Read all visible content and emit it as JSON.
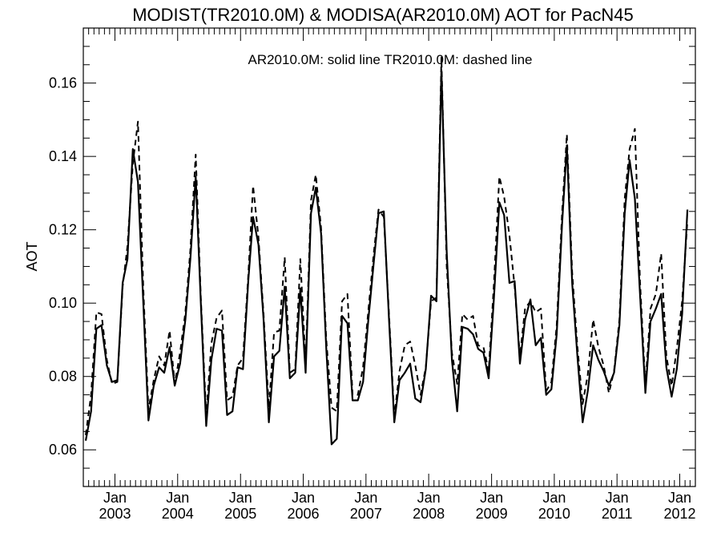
{
  "chart_data": {
    "type": "line",
    "title": "MODIST(TR2010.0M) & MODISA(AR2010.0M)  AOT for PacN45",
    "annotation": "AR2010.0M: solid line   TR2010.0M: dashed line",
    "ylabel": "AOT",
    "xlabel": "",
    "xlim": [
      "2002-07-01",
      "2012-04-01"
    ],
    "ylim": [
      0.05,
      0.175
    ],
    "yticks": [
      {
        "value": 0.06,
        "label": "0.06"
      },
      {
        "value": 0.08,
        "label": "0.08"
      },
      {
        "value": 0.1,
        "label": "0.10"
      },
      {
        "value": 0.12,
        "label": "0.12"
      },
      {
        "value": 0.14,
        "label": "0.14"
      },
      {
        "value": 0.16,
        "label": "0.16"
      }
    ],
    "xticks": [
      {
        "date": "2003-01-01",
        "month": "Jan",
        "year": "2003"
      },
      {
        "date": "2004-01-01",
        "month": "Jan",
        "year": "2004"
      },
      {
        "date": "2005-01-01",
        "month": "Jan",
        "year": "2005"
      },
      {
        "date": "2006-01-01",
        "month": "Jan",
        "year": "2006"
      },
      {
        "date": "2007-01-01",
        "month": "Jan",
        "year": "2007"
      },
      {
        "date": "2008-01-01",
        "month": "Jan",
        "year": "2008"
      },
      {
        "date": "2009-01-01",
        "month": "Jan",
        "year": "2009"
      },
      {
        "date": "2010-01-01",
        "month": "Jan",
        "year": "2010"
      },
      {
        "date": "2011-01-01",
        "month": "Jan",
        "year": "2011"
      },
      {
        "date": "2012-01-01",
        "month": "Jan",
        "year": "2012"
      }
    ],
    "grid": false,
    "series": [
      {
        "name": "AR2010.0M",
        "style": "solid",
        "color": "#000000",
        "points": [
          [
            "2002-07-15",
            0.0625
          ],
          [
            "2002-08-15",
            0.0705
          ],
          [
            "2002-09-15",
            0.093
          ],
          [
            "2002-10-15",
            0.094
          ],
          [
            "2002-11-15",
            0.083
          ],
          [
            "2002-12-15",
            0.0785
          ],
          [
            "2003-01-15",
            0.079
          ],
          [
            "2003-02-15",
            0.1055
          ],
          [
            "2003-03-15",
            0.112
          ],
          [
            "2003-04-15",
            0.142
          ],
          [
            "2003-05-15",
            0.133
          ],
          [
            "2003-06-15",
            0.1
          ],
          [
            "2003-07-15",
            0.068
          ],
          [
            "2003-08-15",
            0.0775
          ],
          [
            "2003-09-15",
            0.0825
          ],
          [
            "2003-10-15",
            0.081
          ],
          [
            "2003-11-15",
            0.088
          ],
          [
            "2003-12-15",
            0.0775
          ],
          [
            "2004-01-15",
            0.0835
          ],
          [
            "2004-02-15",
            0.0955
          ],
          [
            "2004-03-15",
            0.112
          ],
          [
            "2004-04-15",
            0.1345
          ],
          [
            "2004-05-15",
            0.1
          ],
          [
            "2004-06-15",
            0.0665
          ],
          [
            "2004-07-15",
            0.0845
          ],
          [
            "2004-08-15",
            0.093
          ],
          [
            "2004-09-15",
            0.0925
          ],
          [
            "2004-10-15",
            0.0695
          ],
          [
            "2004-11-15",
            0.0705
          ],
          [
            "2004-12-15",
            0.0825
          ],
          [
            "2005-01-15",
            0.082
          ],
          [
            "2005-02-15",
            0.106
          ],
          [
            "2005-03-15",
            0.1235
          ],
          [
            "2005-04-15",
            0.116
          ],
          [
            "2005-05-15",
            0.0955
          ],
          [
            "2005-06-15",
            0.0675
          ],
          [
            "2005-07-15",
            0.0855
          ],
          [
            "2005-08-15",
            0.087
          ],
          [
            "2005-09-15",
            0.1045
          ],
          [
            "2005-10-15",
            0.0795
          ],
          [
            "2005-11-15",
            0.081
          ],
          [
            "2005-12-15",
            0.104
          ],
          [
            "2006-01-15",
            0.081
          ],
          [
            "2006-02-15",
            0.1245
          ],
          [
            "2006-03-15",
            0.1315
          ],
          [
            "2006-04-15",
            0.119
          ],
          [
            "2006-05-15",
            0.0875
          ],
          [
            "2006-06-15",
            0.0615
          ],
          [
            "2006-07-15",
            0.063
          ],
          [
            "2006-08-15",
            0.0965
          ],
          [
            "2006-09-15",
            0.0945
          ],
          [
            "2006-10-15",
            0.0735
          ],
          [
            "2006-11-15",
            0.0735
          ],
          [
            "2006-12-15",
            0.0785
          ],
          [
            "2007-01-15",
            0.0955
          ],
          [
            "2007-02-15",
            0.111
          ],
          [
            "2007-03-15",
            0.1245
          ],
          [
            "2007-04-15",
            0.125
          ],
          [
            "2007-05-15",
            0.0955
          ],
          [
            "2007-06-15",
            0.0675
          ],
          [
            "2007-07-15",
            0.079
          ],
          [
            "2007-08-15",
            0.081
          ],
          [
            "2007-09-15",
            0.0835
          ],
          [
            "2007-10-15",
            0.074
          ],
          [
            "2007-11-15",
            0.073
          ],
          [
            "2007-12-15",
            0.082
          ],
          [
            "2008-01-15",
            0.102
          ],
          [
            "2008-02-15",
            0.1005
          ],
          [
            "2008-03-15",
            0.1635
          ],
          [
            "2008-04-15",
            0.114
          ],
          [
            "2008-05-15",
            0.0845
          ],
          [
            "2008-06-15",
            0.0705
          ],
          [
            "2008-07-15",
            0.0935
          ],
          [
            "2008-08-15",
            0.093
          ],
          [
            "2008-09-15",
            0.0915
          ],
          [
            "2008-10-15",
            0.0875
          ],
          [
            "2008-11-15",
            0.0865
          ],
          [
            "2008-12-15",
            0.0795
          ],
          [
            "2009-01-15",
            0.1015
          ],
          [
            "2009-02-15",
            0.1275
          ],
          [
            "2009-03-15",
            0.124
          ],
          [
            "2009-04-15",
            0.1055
          ],
          [
            "2009-05-15",
            0.106
          ],
          [
            "2009-06-15",
            0.0835
          ],
          [
            "2009-07-15",
            0.0955
          ],
          [
            "2009-08-15",
            0.101
          ],
          [
            "2009-09-15",
            0.0885
          ],
          [
            "2009-10-15",
            0.0905
          ],
          [
            "2009-11-15",
            0.075
          ],
          [
            "2009-12-15",
            0.0765
          ],
          [
            "2010-01-15",
            0.0915
          ],
          [
            "2010-02-15",
            0.1215
          ],
          [
            "2010-03-15",
            0.143
          ],
          [
            "2010-04-15",
            0.1055
          ],
          [
            "2010-05-15",
            0.086
          ],
          [
            "2010-06-15",
            0.0675
          ],
          [
            "2010-07-15",
            0.076
          ],
          [
            "2010-08-15",
            0.0885
          ],
          [
            "2010-09-15",
            0.0845
          ],
          [
            "2010-10-15",
            0.0815
          ],
          [
            "2010-11-15",
            0.0775
          ],
          [
            "2010-12-15",
            0.081
          ],
          [
            "2011-01-15",
            0.094
          ],
          [
            "2011-02-15",
            0.1245
          ],
          [
            "2011-03-15",
            0.139
          ],
          [
            "2011-04-15",
            0.1285
          ],
          [
            "2011-05-15",
            0.1025
          ],
          [
            "2011-06-15",
            0.0755
          ],
          [
            "2011-07-15",
            0.095
          ],
          [
            "2011-08-15",
            0.0985
          ],
          [
            "2011-09-15",
            0.1025
          ],
          [
            "2011-10-15",
            0.0825
          ],
          [
            "2011-11-15",
            0.0745
          ],
          [
            "2011-12-15",
            0.082
          ],
          [
            "2012-01-15",
            0.097
          ],
          [
            "2012-02-15",
            0.1255
          ]
        ]
      },
      {
        "name": "TR2010.0M",
        "style": "dashed",
        "color": "#000000",
        "points": [
          [
            "2002-07-15",
            0.064
          ],
          [
            "2002-08-15",
            0.075
          ],
          [
            "2002-09-15",
            0.0975
          ],
          [
            "2002-10-15",
            0.097
          ],
          [
            "2002-11-15",
            0.0845
          ],
          [
            "2002-12-15",
            0.078
          ],
          [
            "2003-01-15",
            0.0785
          ],
          [
            "2003-02-15",
            0.1045
          ],
          [
            "2003-03-15",
            0.1155
          ],
          [
            "2003-04-15",
            0.138
          ],
          [
            "2003-05-15",
            0.1495
          ],
          [
            "2003-06-15",
            0.104
          ],
          [
            "2003-07-15",
            0.071
          ],
          [
            "2003-08-15",
            0.079
          ],
          [
            "2003-09-15",
            0.0855
          ],
          [
            "2003-10-15",
            0.083
          ],
          [
            "2003-11-15",
            0.0925
          ],
          [
            "2003-12-15",
            0.078
          ],
          [
            "2004-01-15",
            0.0865
          ],
          [
            "2004-02-15",
            0.0975
          ],
          [
            "2004-03-15",
            0.1145
          ],
          [
            "2004-04-15",
            0.1405
          ],
          [
            "2004-05-15",
            0.1015
          ],
          [
            "2004-06-15",
            0.0695
          ],
          [
            "2004-07-15",
            0.089
          ],
          [
            "2004-08-15",
            0.096
          ],
          [
            "2004-09-15",
            0.098
          ],
          [
            "2004-10-15",
            0.0735
          ],
          [
            "2004-11-15",
            0.0745
          ],
          [
            "2004-12-15",
            0.083
          ],
          [
            "2005-01-15",
            0.085
          ],
          [
            "2005-02-15",
            0.1075
          ],
          [
            "2005-03-15",
            0.132
          ],
          [
            "2005-04-15",
            0.118
          ],
          [
            "2005-05-15",
            0.097
          ],
          [
            "2005-06-15",
            0.0715
          ],
          [
            "2005-07-15",
            0.092
          ],
          [
            "2005-08-15",
            0.0925
          ],
          [
            "2005-09-15",
            0.1125
          ],
          [
            "2005-10-15",
            0.081
          ],
          [
            "2005-11-15",
            0.082
          ],
          [
            "2005-12-15",
            0.112
          ],
          [
            "2006-01-15",
            0.0835
          ],
          [
            "2006-02-15",
            0.128
          ],
          [
            "2006-03-15",
            0.135
          ],
          [
            "2006-04-15",
            0.1205
          ],
          [
            "2006-05-15",
            0.09
          ],
          [
            "2006-06-15",
            0.0715
          ],
          [
            "2006-07-15",
            0.0705
          ],
          [
            "2006-08-15",
            0.1005
          ],
          [
            "2006-09-15",
            0.1025
          ],
          [
            "2006-10-15",
            0.075
          ],
          [
            "2006-11-15",
            0.075
          ],
          [
            "2006-12-15",
            0.0825
          ],
          [
            "2007-01-15",
            0.098
          ],
          [
            "2007-02-15",
            0.1135
          ],
          [
            "2007-03-15",
            0.1255
          ],
          [
            "2007-04-15",
            0.1235
          ],
          [
            "2007-05-15",
            0.097
          ],
          [
            "2007-06-15",
            0.069
          ],
          [
            "2007-07-15",
            0.0815
          ],
          [
            "2007-08-15",
            0.0885
          ],
          [
            "2007-09-15",
            0.0895
          ],
          [
            "2007-10-15",
            0.083
          ],
          [
            "2007-11-15",
            0.075
          ],
          [
            "2007-12-15",
            0.0825
          ],
          [
            "2008-01-15",
            0.1005
          ],
          [
            "2008-02-15",
            0.1015
          ],
          [
            "2008-03-15",
            0.167
          ],
          [
            "2008-04-15",
            0.11
          ],
          [
            "2008-05-15",
            0.0865
          ],
          [
            "2008-06-15",
            0.078
          ],
          [
            "2008-07-15",
            0.097
          ],
          [
            "2008-08-15",
            0.0955
          ],
          [
            "2008-09-15",
            0.0965
          ],
          [
            "2008-10-15",
            0.0885
          ],
          [
            "2008-11-15",
            0.088
          ],
          [
            "2008-12-15",
            0.0815
          ],
          [
            "2009-01-15",
            0.1055
          ],
          [
            "2009-02-15",
            0.1345
          ],
          [
            "2009-03-15",
            0.129
          ],
          [
            "2009-04-15",
            0.1185
          ],
          [
            "2009-05-15",
            0.1045
          ],
          [
            "2009-06-15",
            0.0855
          ],
          [
            "2009-07-15",
            0.0985
          ],
          [
            "2009-08-15",
            0.1005
          ],
          [
            "2009-09-15",
            0.0975
          ],
          [
            "2009-10-15",
            0.0985
          ],
          [
            "2009-11-15",
            0.076
          ],
          [
            "2009-12-15",
            0.0785
          ],
          [
            "2010-01-15",
            0.094
          ],
          [
            "2010-02-15",
            0.1245
          ],
          [
            "2010-03-15",
            0.146
          ],
          [
            "2010-04-15",
            0.1085
          ],
          [
            "2010-05-15",
            0.0885
          ],
          [
            "2010-06-15",
            0.0725
          ],
          [
            "2010-07-15",
            0.0805
          ],
          [
            "2010-08-15",
            0.0955
          ],
          [
            "2010-09-15",
            0.088
          ],
          [
            "2010-10-15",
            0.083
          ],
          [
            "2010-11-15",
            0.0755
          ],
          [
            "2010-12-15",
            0.0815
          ],
          [
            "2011-01-15",
            0.0955
          ],
          [
            "2011-02-15",
            0.1285
          ],
          [
            "2011-03-15",
            0.142
          ],
          [
            "2011-04-15",
            0.1475
          ],
          [
            "2011-05-15",
            0.106
          ],
          [
            "2011-06-15",
            0.0775
          ],
          [
            "2011-07-15",
            0.0985
          ],
          [
            "2011-08-15",
            0.1025
          ],
          [
            "2011-09-15",
            0.1135
          ],
          [
            "2011-10-15",
            0.0855
          ],
          [
            "2011-11-15",
            0.0775
          ],
          [
            "2011-12-15",
            0.0875
          ],
          [
            "2012-01-15",
            0.1005
          ],
          [
            "2012-02-15",
            0.1225
          ]
        ]
      }
    ]
  }
}
